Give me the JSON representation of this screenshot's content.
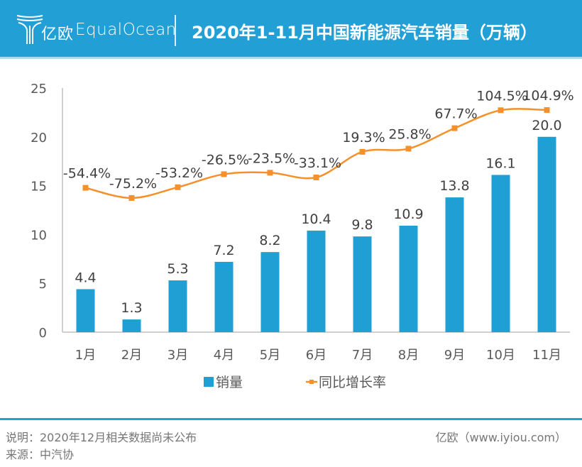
{
  "header": {
    "logo_cn": "亿欧",
    "logo_en": "EqualOcean",
    "title": "2020年1-11月中国新能源汽车销量（万辆）"
  },
  "footer": {
    "note": "说明：2020年12月相关数据尚未公布",
    "source": "来源：中汽协",
    "credit": "亿欧（www.iyiou.com）"
  },
  "colors": {
    "header_bg": "#229fd4",
    "bar": "#1f9fd4",
    "line": "#f5902a"
  },
  "chart_data": {
    "type": "bar",
    "title": "2020年1-11月中国新能源汽车销量（万辆）",
    "xlabel": "",
    "ylabel": "",
    "categories": [
      "1月",
      "2月",
      "3月",
      "4月",
      "5月",
      "6月",
      "7月",
      "8月",
      "9月",
      "10月",
      "11月"
    ],
    "ylim": [
      0,
      25
    ],
    "yticks": [
      0,
      5,
      10,
      15,
      20,
      25
    ],
    "grid": false,
    "legend_position": "bottom",
    "series": [
      {
        "name": "销量",
        "type": "bar",
        "axis": "primary",
        "values": [
          4.4,
          1.3,
          5.3,
          7.2,
          8.2,
          10.4,
          9.8,
          10.9,
          13.8,
          16.1,
          20.0
        ],
        "labels": [
          "4.4",
          "1.3",
          "5.3",
          "7.2",
          "8.2",
          "10.4",
          "9.8",
          "10.9",
          "13.8",
          "16.1",
          "20.0"
        ]
      },
      {
        "name": "同比增长率",
        "type": "line",
        "axis": "secondary",
        "unit": "%",
        "values": [
          -54.4,
          -75.2,
          -53.2,
          -26.5,
          -23.5,
          -33.1,
          19.3,
          25.8,
          67.7,
          104.5,
          104.9
        ],
        "labels": [
          "-54.4%",
          "-75.2%",
          "-53.2%",
          "-26.5%",
          "-23.5%",
          "-33.1%",
          "19.3%",
          "25.8%",
          "67.7%",
          "104.5%",
          "104.9%"
        ],
        "secondary_ylim": [
          -350,
          150
        ],
        "secondary_axis_visible": false
      }
    ]
  }
}
